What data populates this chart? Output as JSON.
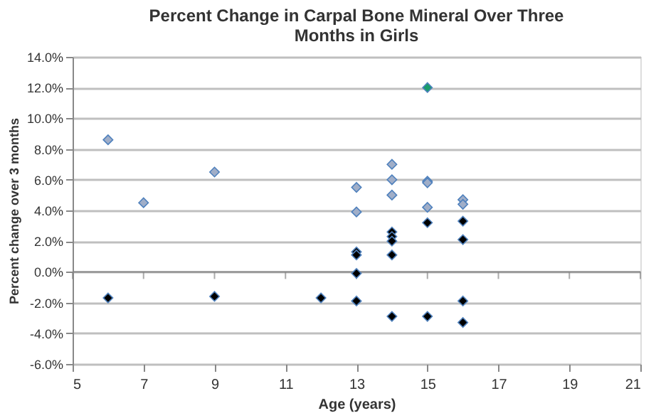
{
  "chart_data": {
    "type": "scatter",
    "title": "Percent Change in Carpal Bone Mineral Over Three Months in Girls",
    "xlabel": "Age (years)",
    "ylabel": "Percent change over 3 months",
    "xlim": [
      5,
      21
    ],
    "xticks": [
      5,
      7,
      9,
      11,
      13,
      15,
      17,
      19,
      21
    ],
    "ylim": [
      -6,
      14
    ],
    "yticks": [
      {
        "value": -6,
        "label": "-6.0%"
      },
      {
        "value": -4,
        "label": "-4.0%"
      },
      {
        "value": -2,
        "label": "-2.0%"
      },
      {
        "value": 0,
        "label": "0.0%"
      },
      {
        "value": 2,
        "label": "2.0%"
      },
      {
        "value": 4,
        "label": "4.0%"
      },
      {
        "value": 6,
        "label": "6.0%"
      },
      {
        "value": 8,
        "label": "8.0%"
      },
      {
        "value": 10,
        "label": "10.0%"
      },
      {
        "value": 12,
        "label": "12.0%"
      },
      {
        "value": 14,
        "label": "14.0%"
      }
    ],
    "grid": "y",
    "marker": "diamond",
    "series": [
      {
        "color": "#a0aec8",
        "x": [
          6,
          7,
          9,
          13,
          13,
          14,
          14,
          14,
          15,
          15,
          15,
          16,
          16
        ],
        "values": [
          8.6,
          4.5,
          6.5,
          5.5,
          3.9,
          7.0,
          6.0,
          5.0,
          5.9,
          5.8,
          4.2,
          4.7,
          4.4
        ]
      },
      {
        "color": "#000000",
        "x": [
          6,
          9,
          12,
          13,
          13,
          13,
          13,
          14,
          14,
          14,
          14,
          14,
          15,
          15,
          16,
          16,
          16,
          16
        ],
        "values": [
          -1.7,
          -1.6,
          -1.7,
          1.3,
          1.1,
          -0.1,
          -1.9,
          2.6,
          2.3,
          2.0,
          1.1,
          -2.9,
          3.2,
          -2.9,
          3.3,
          2.1,
          -1.9,
          -3.3
        ]
      },
      {
        "color": "#1a9c6c",
        "x": [
          15
        ],
        "values": [
          12.0
        ]
      }
    ]
  }
}
